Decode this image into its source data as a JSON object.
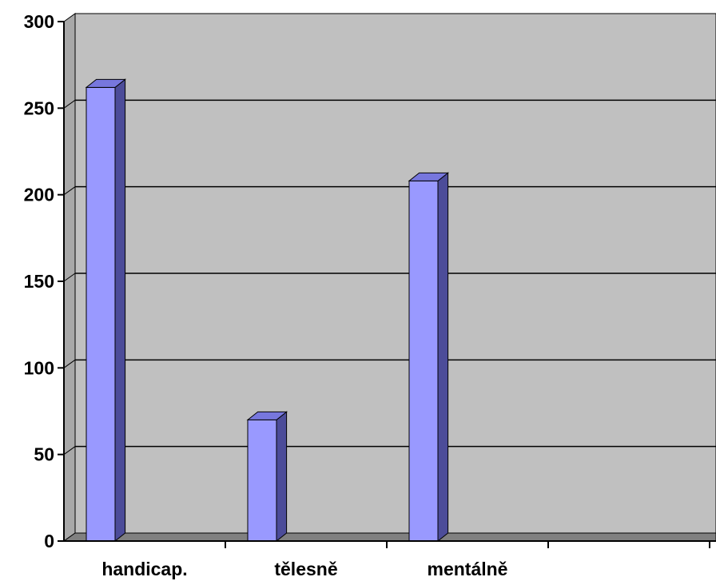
{
  "chart_data": {
    "type": "bar",
    "categories": [
      "handicap.",
      "tělesně",
      "mentálně",
      ""
    ],
    "values": [
      262,
      70,
      208,
      null
    ],
    "ylim": [
      0,
      300
    ],
    "yticks": [
      0,
      50,
      100,
      150,
      200,
      250,
      300
    ],
    "grid": true,
    "three_d": true,
    "colors": {
      "bar_front": "#9999ff",
      "bar_side": "#4c4c99",
      "bar_top": "#7777dd",
      "plot_bg": "#c0c0c0",
      "floor": "#808080",
      "gridline": "#000000"
    }
  }
}
